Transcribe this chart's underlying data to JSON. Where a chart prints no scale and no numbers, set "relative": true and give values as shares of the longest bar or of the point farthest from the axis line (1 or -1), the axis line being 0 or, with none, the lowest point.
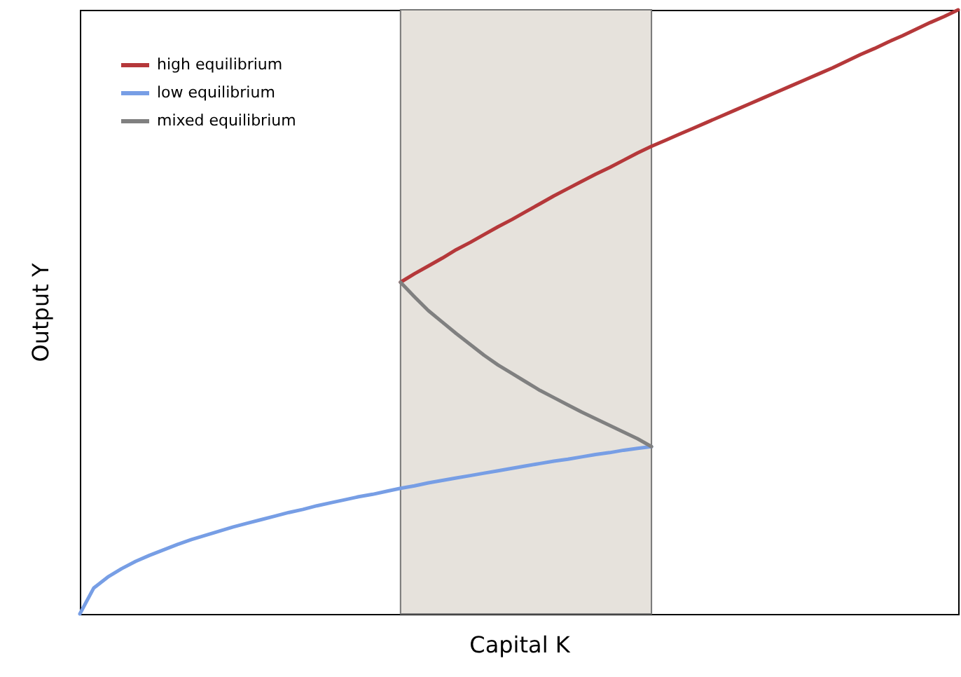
{
  "chart_data": {
    "type": "line",
    "relative": true,
    "xlabel": "Capital K",
    "ylabel": "Output Y",
    "categories": [
      null,
      null,
      null,
      null,
      null,
      null,
      null,
      null,
      null,
      null,
      null,
      null,
      null,
      null,
      null,
      null,
      null,
      null,
      null,
      null,
      null,
      null,
      null,
      null,
      null,
      null,
      null,
      null,
      null,
      null,
      null,
      null,
      null,
      null,
      null,
      null,
      null,
      null,
      null,
      null,
      null,
      null,
      null,
      null,
      null,
      null,
      null,
      null,
      null,
      null,
      null,
      null,
      null,
      null,
      null,
      null,
      null,
      null,
      null,
      null,
      null,
      null,
      null,
      null
    ],
    "tick_labels": false,
    "grid": false,
    "legend": "top left",
    "series": [
      {
        "type": "area",
        "color": "#e6e2dc",
        "values": [
          null,
          null,
          null,
          null,
          null,
          null,
          null,
          null,
          null,
          null,
          null,
          null,
          null,
          null,
          null,
          null,
          null,
          null,
          null,
          null,
          null,
          null,
          null,
          1,
          1,
          1,
          1,
          1,
          1,
          1,
          1,
          1,
          1,
          1,
          1,
          1,
          1,
          1,
          1,
          1,
          1,
          1,
          null,
          null,
          null,
          null,
          null,
          null,
          null,
          null,
          null,
          null,
          null,
          null,
          null,
          null,
          null,
          null,
          null,
          null,
          null,
          null,
          null,
          null
        ]
      },
      {
        "name": "high equilibrium",
        "color": "#b5383a",
        "values": [
          null,
          null,
          null,
          null,
          null,
          null,
          null,
          null,
          null,
          null,
          null,
          null,
          null,
          null,
          null,
          null,
          null,
          null,
          null,
          null,
          null,
          null,
          null,
          0.549,
          0.563,
          0.576,
          0.589,
          0.603,
          0.615,
          0.628,
          0.641,
          0.653,
          0.666,
          0.679,
          0.692,
          0.704,
          0.716,
          0.728,
          0.739,
          0.751,
          0.763,
          0.774,
          0.784,
          0.794,
          0.804,
          0.814,
          0.824,
          0.834,
          0.844,
          0.854,
          0.864,
          0.874,
          0.884,
          0.894,
          0.904,
          0.915,
          0.926,
          0.936,
          0.947,
          0.957,
          0.968,
          0.979,
          0.989,
          1.0
        ]
      },
      {
        "name": "low equilibrium",
        "color": "#779ee5",
        "values": [
          0,
          0.043,
          0.061,
          0.075,
          0.087,
          0.097,
          0.106,
          0.115,
          0.123,
          0.13,
          0.137,
          0.144,
          0.15,
          0.156,
          0.162,
          0.168,
          0.173,
          0.179,
          0.184,
          0.189,
          0.194,
          0.198,
          0.203,
          0.208,
          0.212,
          0.217,
          0.221,
          0.225,
          0.229,
          0.233,
          0.237,
          0.241,
          0.245,
          0.249,
          0.253,
          0.256,
          0.26,
          0.264,
          0.267,
          0.271,
          0.274,
          0.277,
          null,
          null,
          null,
          null,
          null,
          null,
          null,
          null,
          null,
          null,
          null,
          null,
          null,
          null,
          null,
          null,
          null,
          null,
          null,
          null,
          null,
          null
        ]
      },
      {
        "name": "mixed equilibrium",
        "color": "#808080",
        "values": [
          null,
          null,
          null,
          null,
          null,
          null,
          null,
          null,
          null,
          null,
          null,
          null,
          null,
          null,
          null,
          null,
          null,
          null,
          null,
          null,
          null,
          null,
          null,
          0.549,
          0.525,
          0.502,
          0.483,
          0.464,
          0.446,
          0.428,
          0.412,
          0.398,
          0.384,
          0.37,
          0.358,
          0.346,
          0.334,
          0.323,
          0.312,
          0.301,
          0.29,
          0.277,
          null,
          null,
          null,
          null,
          null,
          null,
          null,
          null,
          null,
          null,
          null,
          null,
          null,
          null,
          null,
          null,
          null,
          null,
          null,
          null,
          null,
          null
        ]
      }
    ]
  }
}
